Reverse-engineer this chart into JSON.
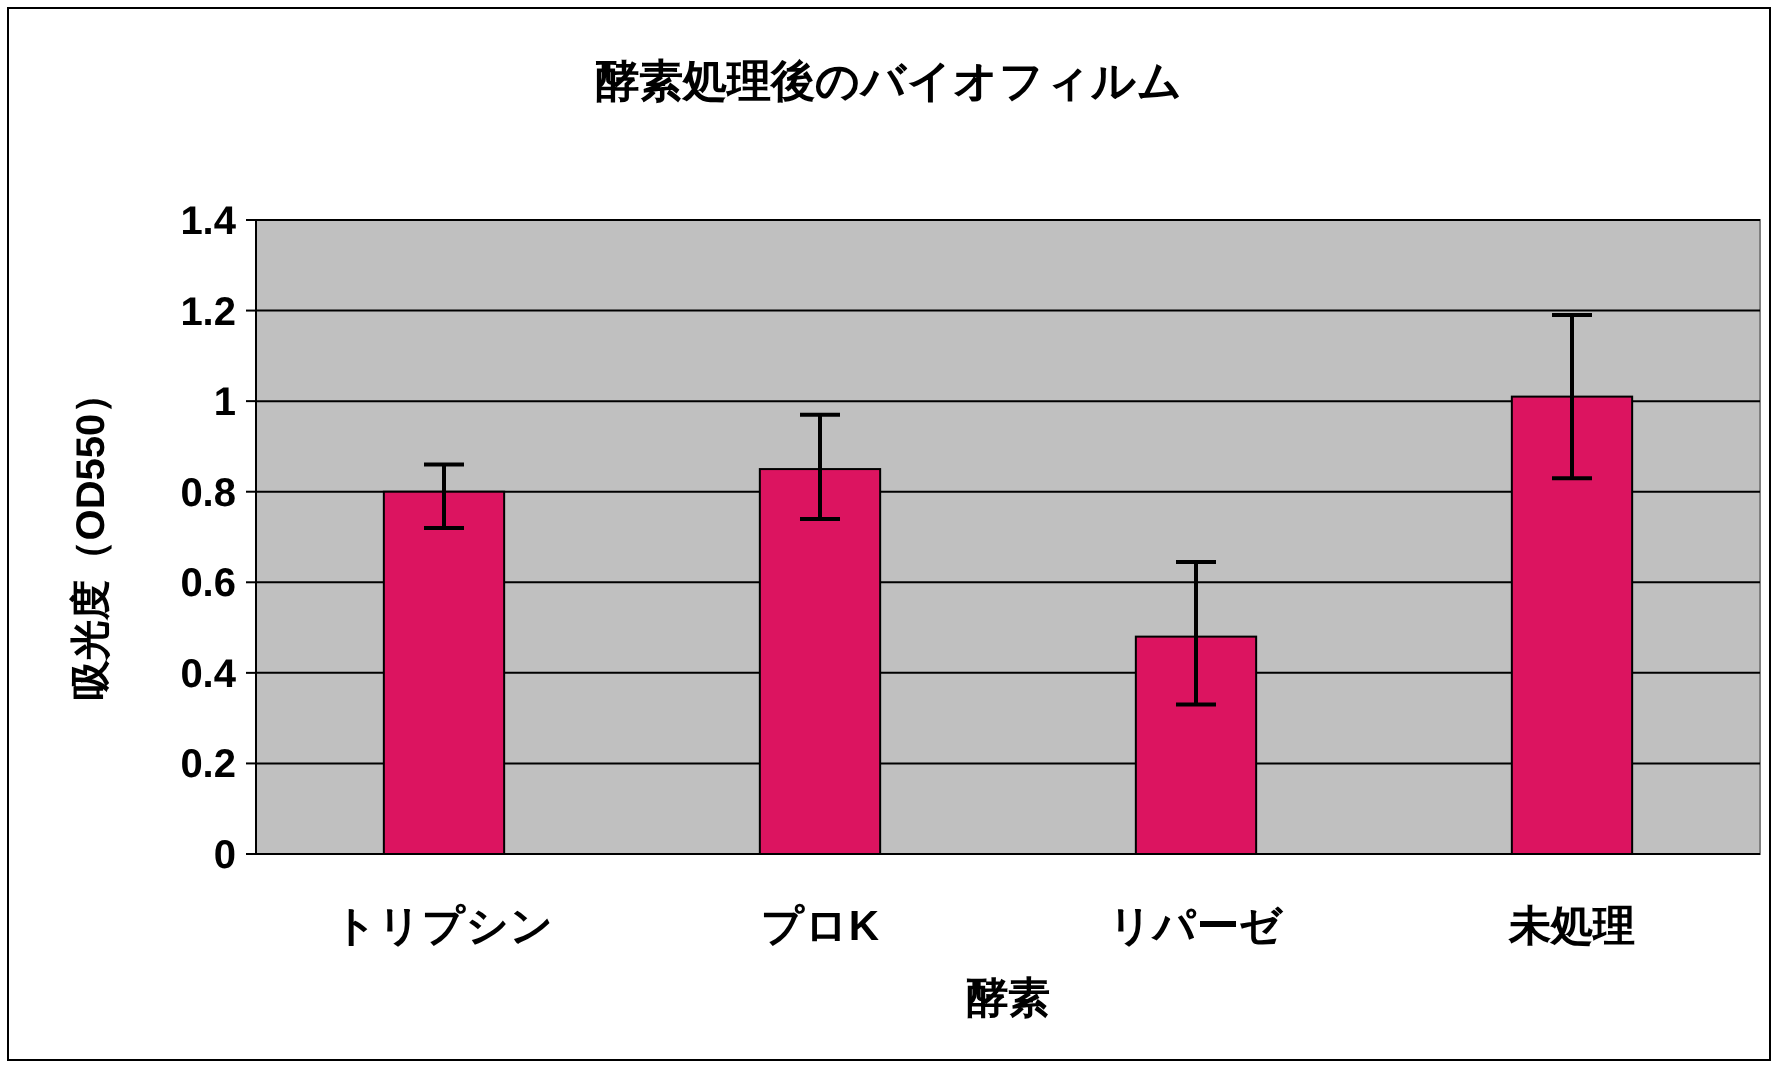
{
  "chart_data": {
    "type": "bar",
    "title": "酵素処理後のバイオフィルム",
    "xlabel": "酵素",
    "ylabel": "吸光度（OD550）",
    "categories": [
      "トリプシン",
      "プロK",
      "リパーゼ",
      "未処理"
    ],
    "values": [
      0.8,
      0.85,
      0.48,
      1.01
    ],
    "errors": [
      [
        0.72,
        0.86
      ],
      [
        0.74,
        0.97
      ],
      [
        0.33,
        0.645
      ],
      [
        0.83,
        1.19
      ]
    ],
    "color": "#dc1460",
    "ylim": [
      0,
      1.4
    ],
    "yticks": [
      0,
      0.2,
      0.4,
      0.6,
      0.8,
      1,
      1.2,
      1.4
    ],
    "grid": "y"
  }
}
